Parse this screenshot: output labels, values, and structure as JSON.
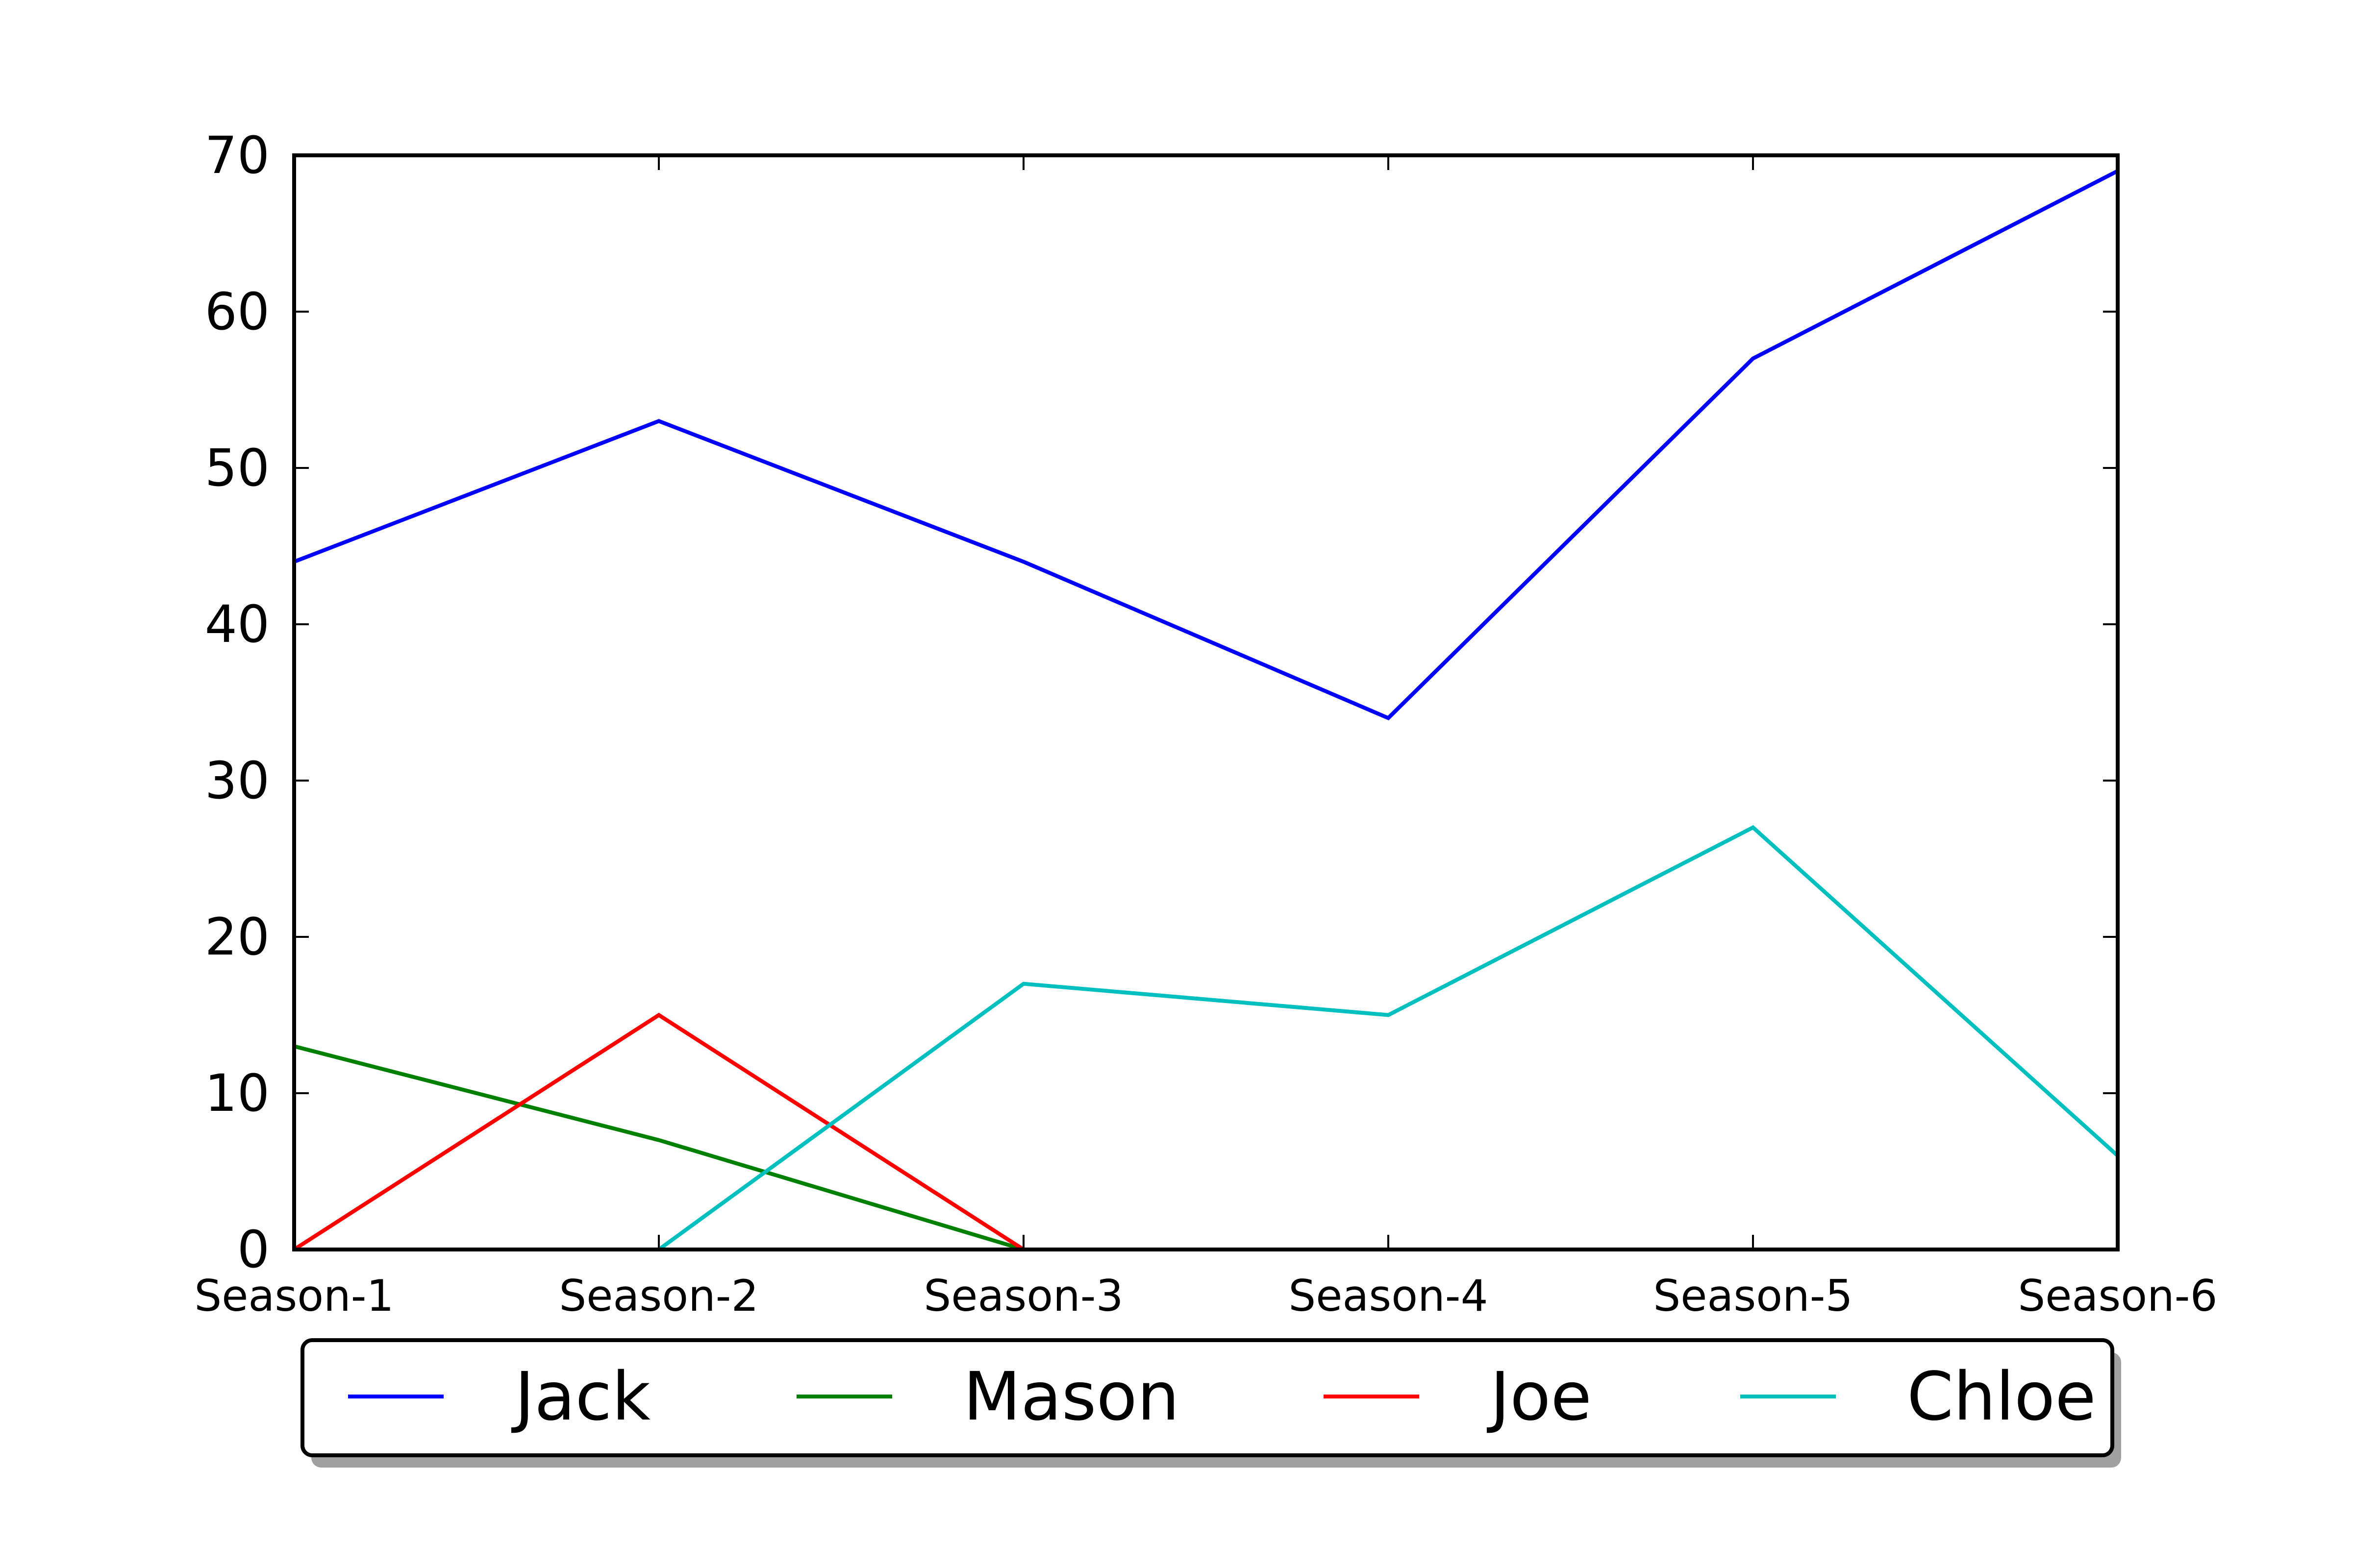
{
  "chart_data": {
    "type": "line",
    "categories": [
      "Season-1",
      "Season-2",
      "Season-3",
      "Season-4",
      "Season-5",
      "Season-6"
    ],
    "series": [
      {
        "name": "Jack",
        "color": "#0000ff",
        "values": [
          44,
          53,
          44,
          34,
          57,
          69
        ]
      },
      {
        "name": "Mason",
        "color": "#008000",
        "values": [
          13,
          7,
          0,
          null,
          null,
          null
        ]
      },
      {
        "name": "Joe",
        "color": "#ff0000",
        "values": [
          0,
          15,
          0,
          null,
          null,
          null
        ]
      },
      {
        "name": "Chloe",
        "color": "#00bfbf",
        "values": [
          null,
          0,
          17,
          15,
          27,
          6
        ]
      }
    ],
    "ylim": [
      0,
      70
    ],
    "yticks": [
      0,
      10,
      20,
      30,
      40,
      50,
      60,
      70
    ],
    "grid": false,
    "legend_position": "bottom-center"
  }
}
